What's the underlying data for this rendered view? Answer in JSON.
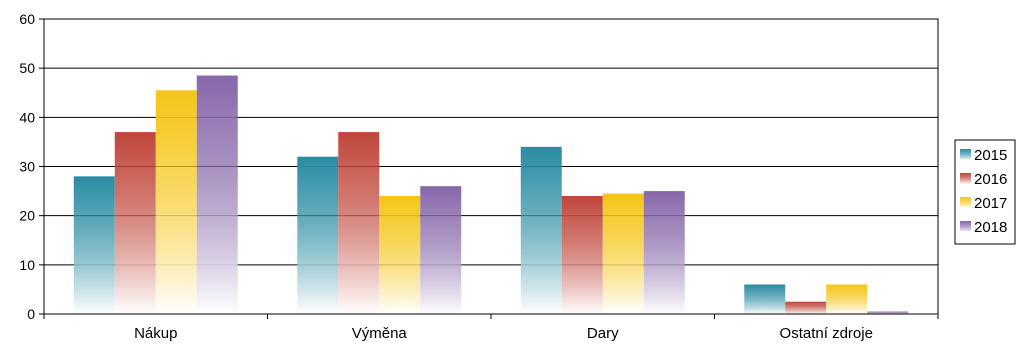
{
  "chart_data": {
    "type": "bar",
    "title": "",
    "xlabel": "",
    "ylabel": "",
    "categories": [
      "Nákup",
      "Výměna",
      "Dary",
      "Ostatní zdroje"
    ],
    "series": [
      {
        "name": "2015",
        "values": [
          28,
          32,
          34,
          6
        ],
        "color": "#2a8ca3"
      },
      {
        "name": "2016",
        "values": [
          37,
          37,
          24,
          2.5
        ],
        "color": "#c0463a"
      },
      {
        "name": "2017",
        "values": [
          45.5,
          24,
          24.5,
          6
        ],
        "color": "#f5c516"
      },
      {
        "name": "2018",
        "values": [
          48.5,
          26,
          25,
          0.5
        ],
        "color": "#8768aa"
      }
    ],
    "ylim": [
      0,
      60
    ],
    "yticks": [
      0,
      10,
      20,
      30,
      40,
      50,
      60
    ],
    "grid": true,
    "legend_position": "right"
  }
}
